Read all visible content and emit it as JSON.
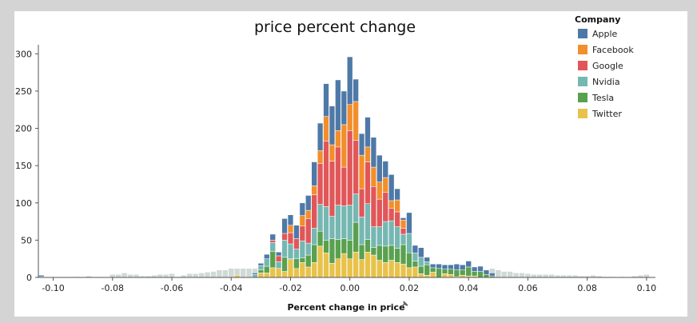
{
  "chart_data": {
    "type": "bar",
    "stacked": true,
    "title": "price percent change",
    "xlabel": "Percent change in price",
    "ylabel": "",
    "xlim": [
      -0.105,
      0.103
    ],
    "ylim": [
      0,
      310
    ],
    "xticks": [
      -0.1,
      -0.08,
      -0.06,
      -0.04,
      -0.02,
      0.0,
      0.02,
      0.04,
      0.06,
      0.08,
      0.1
    ],
    "xtick_labels": [
      "-0.10",
      "-0.08",
      "-0.06",
      "-0.04",
      "-0.02",
      "0.00",
      "0.02",
      "0.04",
      "0.06",
      "0.08",
      "0.10"
    ],
    "yticks": [
      0,
      50,
      100,
      150,
      200,
      250,
      300
    ],
    "ytick_labels": [
      "0",
      "50",
      "100",
      "150",
      "200",
      "250",
      "300"
    ],
    "bin_width": 0.002,
    "x": [
      -0.104,
      -0.092,
      -0.088,
      -0.08,
      -0.078,
      -0.076,
      -0.074,
      -0.072,
      -0.07,
      -0.068,
      -0.066,
      -0.064,
      -0.062,
      -0.06,
      -0.058,
      -0.056,
      -0.054,
      -0.052,
      -0.05,
      -0.048,
      -0.046,
      -0.044,
      -0.042,
      -0.04,
      -0.038,
      -0.036,
      -0.034,
      -0.032,
      -0.03,
      -0.028,
      -0.026,
      -0.024,
      -0.022,
      -0.02,
      -0.018,
      -0.016,
      -0.014,
      -0.012,
      -0.01,
      -0.008,
      -0.006,
      -0.004,
      -0.002,
      0.0,
      0.002,
      0.004,
      0.006,
      0.008,
      0.01,
      0.012,
      0.014,
      0.016,
      0.018,
      0.02,
      0.022,
      0.024,
      0.026,
      0.028,
      0.03,
      0.032,
      0.034,
      0.036,
      0.038,
      0.04,
      0.042,
      0.044,
      0.046,
      0.048,
      0.05,
      0.052,
      0.054,
      0.056,
      0.058,
      0.06,
      0.062,
      0.064,
      0.066,
      0.068,
      0.07,
      0.072,
      0.074,
      0.076,
      0.078,
      0.08,
      0.082,
      0.084,
      0.086,
      0.088,
      0.09,
      0.092,
      0.094,
      0.096,
      0.098,
      0.1
    ],
    "series": [
      {
        "name": "Twitter",
        "color": "#e8c24a",
        "values": [
          1,
          0,
          0,
          0,
          0,
          0,
          0,
          0,
          0,
          0,
          0,
          0,
          0,
          0,
          0,
          0,
          0,
          0,
          0,
          0,
          0,
          0,
          0,
          0,
          3,
          0,
          0,
          0,
          6,
          6,
          13,
          12,
          8,
          24,
          12,
          20,
          14,
          20,
          42,
          33,
          19,
          25,
          32,
          25,
          34,
          24,
          34,
          30,
          23,
          20,
          23,
          20,
          18,
          13,
          14,
          5,
          3,
          7,
          0,
          5,
          4,
          1,
          3,
          2,
          2,
          0,
          0,
          0,
          0,
          0,
          0,
          0,
          0,
          0,
          0,
          0,
          0,
          0,
          0,
          0,
          0,
          0,
          0,
          0,
          0,
          0,
          0,
          0,
          0,
          0,
          0,
          0,
          0,
          0
        ]
      },
      {
        "name": "Tesla",
        "color": "#59a14f",
        "values": [
          0,
          0,
          0,
          0,
          0,
          0,
          0,
          0,
          0,
          0,
          0,
          0,
          0,
          0,
          0,
          0,
          0,
          0,
          0,
          0,
          0,
          0,
          0,
          0,
          0,
          0,
          0,
          0,
          4,
          9,
          22,
          0,
          19,
          1,
          13,
          6,
          16,
          24,
          20,
          17,
          33,
          26,
          20,
          25,
          40,
          20,
          17,
          10,
          20,
          22,
          20,
          19,
          26,
          20,
          8,
          10,
          14,
          6,
          12,
          6,
          7,
          9,
          7,
          12,
          6,
          8,
          4,
          2,
          0,
          0,
          0,
          0,
          0,
          0,
          0,
          0,
          0,
          0,
          0,
          0,
          0,
          0,
          0,
          0,
          0,
          0,
          0,
          0,
          0,
          0,
          0,
          0,
          0,
          0
        ]
      },
      {
        "name": "Nvidia",
        "color": "#76b7b2",
        "values": [
          0,
          0,
          0,
          0,
          0,
          0,
          0,
          0,
          0,
          0,
          0,
          0,
          0,
          0,
          0,
          0,
          0,
          0,
          0,
          0,
          0,
          0,
          0,
          0,
          0,
          0,
          0,
          4,
          6,
          10,
          12,
          9,
          23,
          20,
          13,
          23,
          16,
          22,
          36,
          45,
          30,
          46,
          44,
          47,
          38,
          37,
          48,
          28,
          25,
          33,
          33,
          29,
          14,
          26,
          11,
          12,
          4,
          0,
          0,
          0,
          0,
          0,
          0,
          0,
          0,
          0,
          0,
          0,
          0,
          0,
          0,
          0,
          0,
          0,
          0,
          0,
          0,
          0,
          0,
          0,
          0,
          0,
          0,
          0,
          0,
          0,
          0,
          0,
          0,
          0,
          0,
          0,
          0,
          0
        ]
      },
      {
        "name": "Google",
        "color": "#e15759",
        "values": [
          0,
          0,
          0,
          0,
          0,
          0,
          0,
          0,
          0,
          0,
          0,
          0,
          0,
          0,
          0,
          0,
          0,
          0,
          0,
          0,
          0,
          0,
          0,
          0,
          0,
          0,
          0,
          0,
          0,
          0,
          3,
          8,
          9,
          15,
          14,
          20,
          33,
          45,
          55,
          88,
          74,
          78,
          52,
          100,
          72,
          38,
          56,
          54,
          37,
          39,
          17,
          20,
          8,
          0,
          0,
          0,
          0,
          0,
          0,
          0,
          0,
          0,
          0,
          0,
          0,
          0,
          0,
          0,
          0,
          0,
          0,
          0,
          0,
          0,
          0,
          0,
          0,
          0,
          0,
          0,
          0,
          0,
          0,
          0,
          0,
          0,
          0,
          0,
          0,
          0,
          0,
          0,
          0,
          0
        ]
      },
      {
        "name": "Facebook",
        "color": "#f28e2b",
        "values": [
          0,
          0,
          0,
          0,
          0,
          0,
          0,
          0,
          0,
          0,
          0,
          0,
          0,
          0,
          0,
          0,
          0,
          0,
          0,
          0,
          0,
          0,
          0,
          0,
          0,
          0,
          0,
          0,
          0,
          0,
          0,
          0,
          0,
          10,
          0,
          14,
          11,
          12,
          17,
          33,
          22,
          22,
          57,
          35,
          52,
          45,
          20,
          26,
          23,
          20,
          10,
          16,
          11,
          0,
          0,
          0,
          0,
          0,
          0,
          0,
          0,
          0,
          0,
          0,
          0,
          0,
          0,
          0,
          0,
          0,
          0,
          0,
          0,
          0,
          0,
          0,
          0,
          0,
          0,
          0,
          0,
          0,
          0,
          0,
          0,
          0,
          0,
          0,
          0,
          0,
          0,
          0,
          0,
          0
        ]
      },
      {
        "name": "Apple",
        "color": "#4e79a7",
        "values": [
          2,
          0,
          0,
          0,
          0,
          0,
          0,
          0,
          0,
          0,
          0,
          0,
          0,
          0,
          0,
          0,
          0,
          0,
          0,
          0,
          0,
          0,
          0,
          0,
          0,
          0,
          0,
          2,
          3,
          6,
          8,
          5,
          20,
          14,
          18,
          17,
          20,
          32,
          37,
          44,
          52,
          68,
          45,
          64,
          30,
          29,
          40,
          40,
          36,
          22,
          35,
          15,
          3,
          28,
          10,
          13,
          6,
          5,
          6,
          6,
          6,
          8,
          7,
          8,
          6,
          7,
          6,
          4,
          0,
          0,
          0,
          0,
          0,
          0,
          0,
          0,
          0,
          0,
          0,
          0,
          0,
          0,
          0,
          0,
          0,
          0,
          0,
          0,
          0,
          0,
          0,
          0,
          0,
          0
        ]
      }
    ],
    "light_bin_totals": [
      0,
      1,
      2,
      4,
      4,
      6,
      4,
      4,
      2,
      2,
      3,
      4,
      4,
      5,
      1,
      3,
      5,
      5,
      6,
      7,
      8,
      10,
      10,
      12,
      12,
      12,
      12,
      12,
      0,
      0,
      0,
      0,
      0,
      0,
      0,
      0,
      0,
      0,
      0,
      0,
      0,
      0,
      0,
      0,
      0,
      0,
      0,
      0,
      0,
      0,
      0,
      0,
      0,
      0,
      0,
      0,
      0,
      0,
      0,
      0,
      0,
      0,
      0,
      0,
      0,
      0,
      0,
      12,
      10,
      8,
      8,
      6,
      6,
      5,
      4,
      4,
      4,
      4,
      3,
      3,
      3,
      3,
      2,
      2,
      3,
      2,
      1,
      1,
      0,
      1,
      0,
      2,
      3,
      4
    ],
    "legend": {
      "title": "Company",
      "position": "top-right",
      "entries": [
        "Apple",
        "Facebook",
        "Google",
        "Nvidia",
        "Tesla",
        "Twitter"
      ]
    },
    "grid": false
  }
}
